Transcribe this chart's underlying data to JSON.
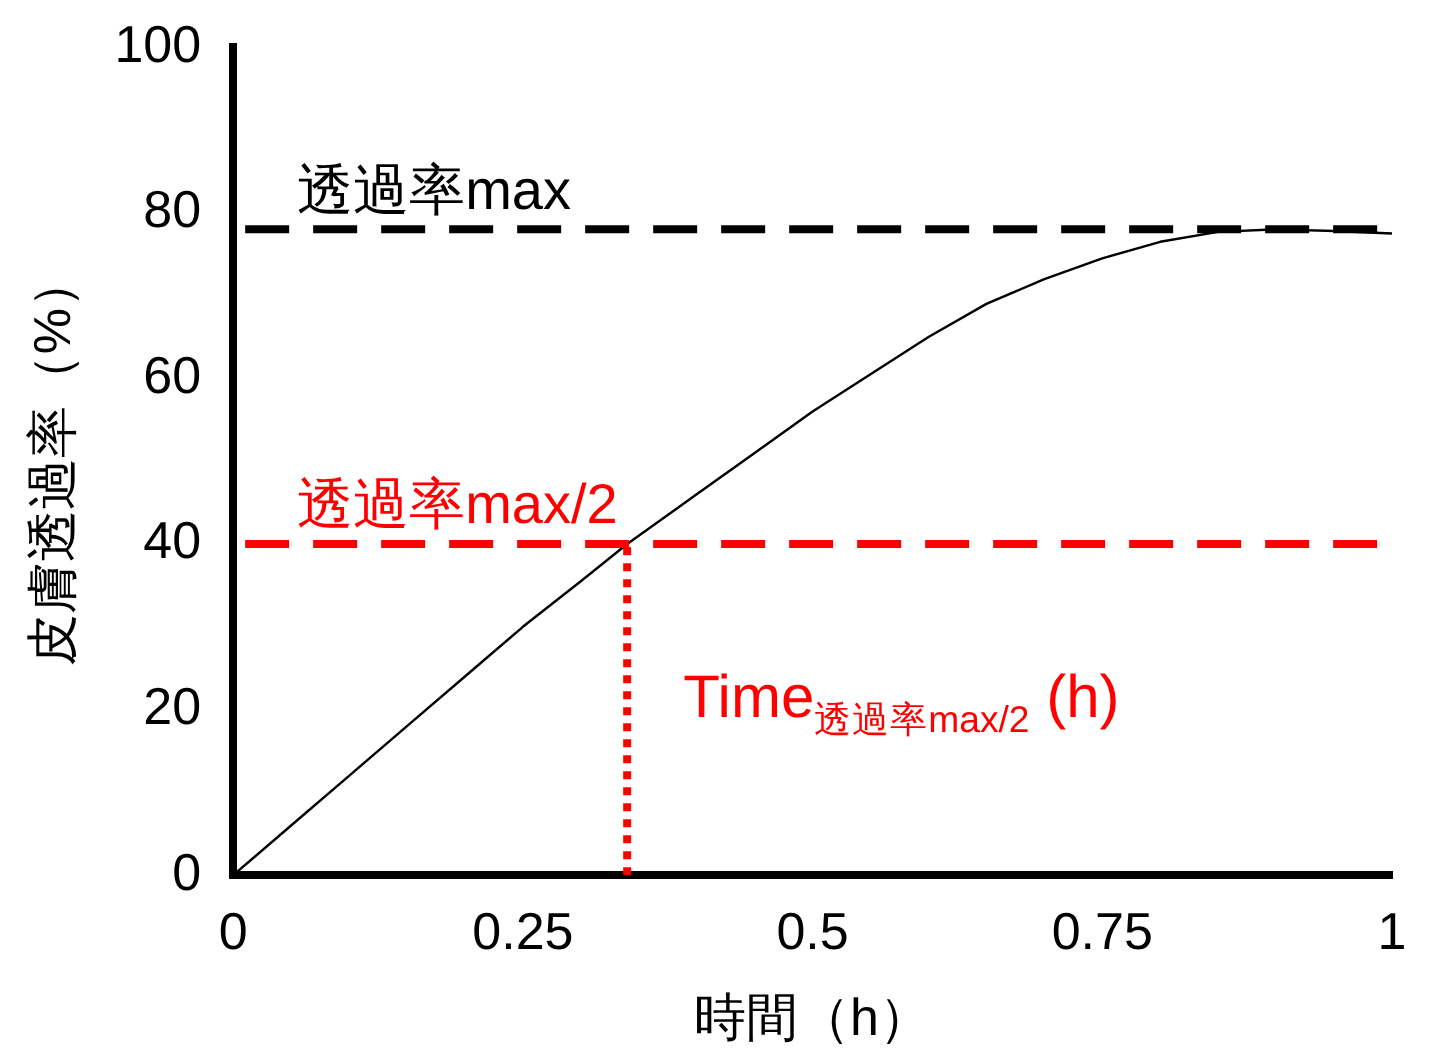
{
  "chart_data": {
    "type": "line",
    "xlabel": "時間（h）",
    "ylabel": "皮膚透過率（%）",
    "x": [
      0,
      0.05,
      0.1,
      0.15,
      0.2,
      0.25,
      0.3,
      0.34,
      0.4,
      0.45,
      0.5,
      0.55,
      0.6,
      0.65,
      0.7,
      0.75,
      0.8,
      0.85,
      0.9,
      0.95,
      1
    ],
    "series": [
      {
        "color": "#000000",
        "values": [
          0,
          6,
          12,
          18,
          24,
          30,
          35.5,
          40,
          46,
          51,
          56,
          60.5,
          65,
          69,
          72,
          74.5,
          76.5,
          77.7,
          78,
          77.8,
          77.5
        ]
      },
      {
        "color": "#ff0000",
        "x": [
          0.34,
          0.34
        ],
        "values": [
          0,
          40
        ],
        "line_style": "dotted"
      }
    ],
    "ref_lines": [
      {
        "axis": "y",
        "value": 78,
        "label": "透過率max",
        "color": "#000000",
        "line_style": "dashed"
      },
      {
        "axis": "y",
        "value": 40,
        "label": "透過率max/2",
        "color": "#ff0000",
        "line_style": "dashed"
      }
    ],
    "annotations": [
      "Time$_{透過率max/2}$ (h)"
    ],
    "xlim": [
      0,
      1
    ],
    "xticks": [
      0,
      0.25,
      0.5,
      0.75,
      1
    ],
    "ylim": [
      0,
      100
    ],
    "yticks": [
      0,
      20,
      40,
      60,
      80,
      100
    ],
    "grid": false,
    "legend": false,
    "marker": "none"
  }
}
